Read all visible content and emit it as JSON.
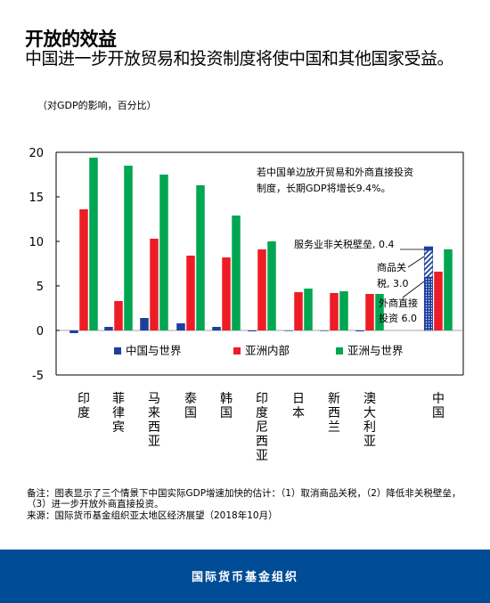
{
  "title": "开放的效益",
  "subtitle": "中国进一步开放贸易和投资制度将使中国和其他国家受益。",
  "unit_note": "（对GDP的影响，百分比）",
  "note": "备注：图表显示了三个情景下中国实际GDP增速加快的估计：（1）取消商品关税，（2）降低非关税壁垒，（3）进一步开放外商直接投资。",
  "source": "来源：国际货币基金组织亚太地区经济展望（2018年10月）",
  "footer": "国际货币基金组织",
  "chart_data": {
    "type": "bar",
    "categories": [
      "印度",
      "菲律宾",
      "马来西亚",
      "泰国",
      "韩国",
      "印度尼西亚",
      "日本",
      "新西兰",
      "澳大利亚"
    ],
    "ylim": [
      -5,
      20
    ],
    "yticks": [
      20,
      15,
      10,
      5,
      0,
      -5
    ],
    "grid": false,
    "legend_placement": "bottom, inside plot",
    "series": [
      {
        "name": "中国与世界",
        "color": "#1c3f9e",
        "values": [
          -0.3,
          0.4,
          1.4,
          0.8,
          0.4,
          -0.1,
          0.0,
          0.0,
          -0.1
        ]
      },
      {
        "name": "亚洲内部",
        "color": "#ee1c25",
        "values": [
          13.6,
          3.3,
          10.3,
          8.4,
          8.2,
          9.1,
          4.3,
          4.2,
          4.1
        ]
      },
      {
        "name": "亚洲与世界",
        "color": "#00a651",
        "values": [
          19.4,
          18.5,
          17.5,
          16.3,
          12.9,
          10.0,
          4.7,
          4.4,
          4.1
        ]
      }
    ],
    "china": {
      "label": "中国",
      "stack": [
        {
          "name": "外商直接投资",
          "value": 6.0,
          "pattern": "dots"
        },
        {
          "name": "商品关税",
          "value": 3.0,
          "pattern": "hatch"
        },
        {
          "name": "服务业非关税壁垒",
          "value": 0.4,
          "pattern": "solid"
        }
      ],
      "asia_internal": 6.6,
      "asia_world": 9.1
    },
    "annotations": {
      "main": [
        "若中国单边放开贸易和外商直接投资",
        "制度，长期GDP将增长9.4%。"
      ],
      "services": "服务业非关税壁垒, 0.4",
      "tariff": [
        "商品关",
        "税, 3.0"
      ],
      "fdi": [
        "外商直接",
        "投资 6.0"
      ]
    }
  }
}
